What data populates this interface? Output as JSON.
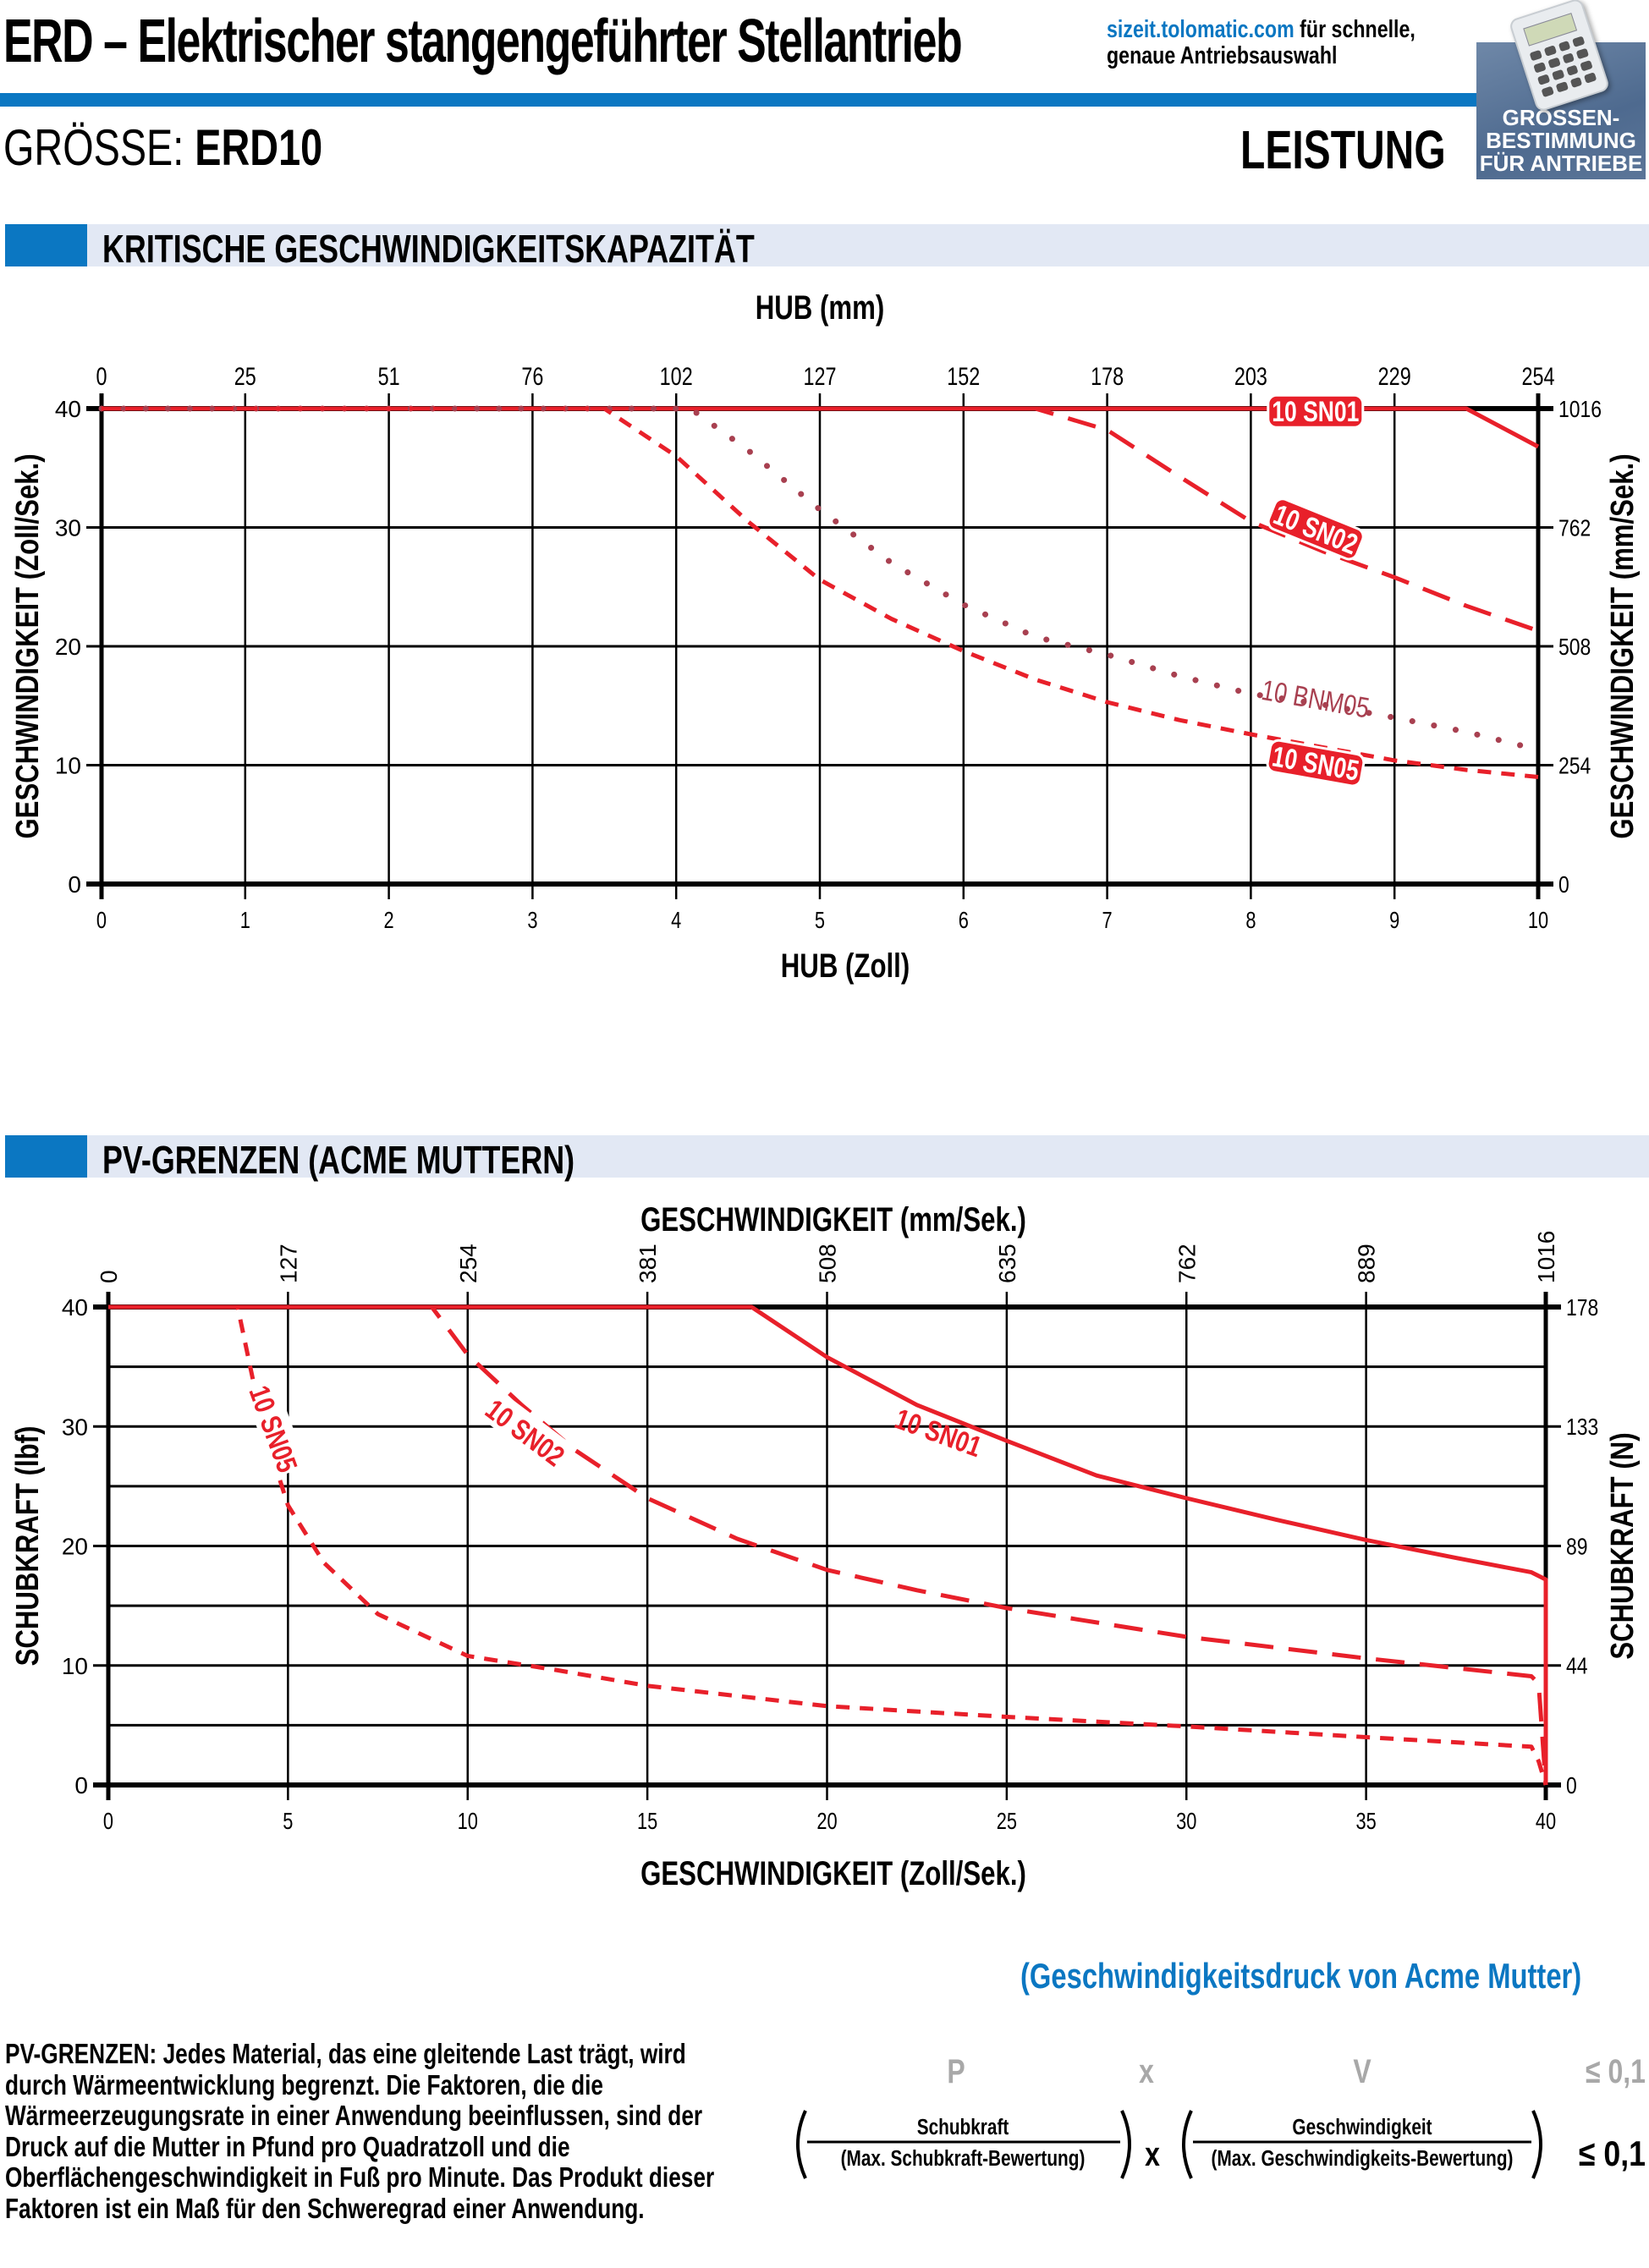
{
  "header": {
    "title": "ERD – Elektrischer stangengeführter Stellantrieb",
    "sizeit_link": "sizeit.tolomatic.com",
    "sizeit_text_1": " für schnelle,",
    "sizeit_text_2": "genaue Antriebsauswahl",
    "badge_lines": [
      "GRÖSSEN-",
      "BESTIMMUNG",
      "FÜR ANTRIEBE"
    ],
    "size_label": "GRÖSSE:",
    "size_value": "ERD10",
    "page_category": "LEISTUNG"
  },
  "colors": {
    "brand_blue": "#0b77c2",
    "section_bg": "#e2e8f4",
    "curve_red": "#e8202a",
    "curve_dotted": "#a84050",
    "formula_grey": "#a8a8a8"
  },
  "sections": {
    "critical_speed": "KRITISCHE GESCHWINDIGKEITSKAPAZITÄT",
    "pv_limits": "PV-GRENZEN (ACME MUTTERN)"
  },
  "chart_data": [
    {
      "type": "line",
      "title": "KRITISCHE GESCHWINDIGKEITSKAPAZITÄT",
      "xlabel": "HUB (Zoll)",
      "xlabel_top": "HUB (mm)",
      "ylabel": "GESCHWINDIGKEIT (Zoll/Sek.)",
      "ylabel_right": "GESCHWINDIGKEIT (mm/Sek.)",
      "xlim": [
        0,
        10
      ],
      "ylim": [
        0,
        40
      ],
      "x_ticks": [
        0,
        1,
        2,
        3,
        4,
        5,
        6,
        7,
        8,
        9,
        10
      ],
      "x_ticks_top": [
        "0",
        "25",
        "51",
        "76",
        "102",
        "127",
        "152",
        "178",
        "203",
        "229",
        "254"
      ],
      "y_ticks": [
        0,
        10,
        20,
        30,
        40
      ],
      "y_ticks_right": [
        "0",
        "254",
        "508",
        "762",
        "1016"
      ],
      "grid": true,
      "series": [
        {
          "name": "10 SN01",
          "style": "solid",
          "label_style": "badge",
          "x": [
            0,
            9.5,
            10
          ],
          "y": [
            40,
            40,
            36.8
          ]
        },
        {
          "name": "10 SN02",
          "style": "dashed-long",
          "label_style": "badge",
          "x": [
            0,
            6.5,
            7,
            7.5,
            8,
            8.5,
            9,
            9.5,
            10
          ],
          "y": [
            40,
            40,
            38.2,
            34.3,
            30.5,
            28,
            25.8,
            23.4,
            21.3
          ]
        },
        {
          "name": "10 BNM05",
          "style": "dotted",
          "label_style": "plain",
          "x": [
            0,
            4.1,
            4.5,
            5,
            5.5,
            6,
            6.5,
            7,
            7.5,
            8,
            8.5,
            9,
            9.5,
            10
          ],
          "y": [
            40,
            40,
            36.5,
            31.5,
            27,
            23.5,
            20.8,
            19.3,
            17.5,
            16,
            15.1,
            14,
            12.8,
            11.3
          ]
        },
        {
          "name": "10 SN05",
          "style": "dashed-short",
          "label_style": "badge",
          "x": [
            0,
            3.5,
            4,
            4.5,
            5,
            5.5,
            6,
            6.5,
            7,
            7.5,
            8,
            8.5,
            9,
            9.5,
            10
          ],
          "y": [
            40,
            40,
            36,
            30.5,
            25.6,
            22.3,
            19.6,
            17.2,
            15.3,
            13.8,
            12.6,
            11.5,
            10.4,
            9.6,
            9.0
          ]
        }
      ]
    },
    {
      "type": "line",
      "title": "PV-GRENZEN (ACME MUTTERN)",
      "xlabel": "GESCHWINDIGKEIT (Zoll/Sek.)",
      "xlabel_top": "GESCHWINDIGKEIT (mm/Sek.)",
      "ylabel": "SCHUBKRAFT (lbf)",
      "ylabel_right": "SCHUBKRAFT (N)",
      "xlim": [
        0,
        40
      ],
      "ylim": [
        0,
        40
      ],
      "x_ticks": [
        0,
        5,
        10,
        15,
        20,
        25,
        30,
        35,
        40
      ],
      "x_ticks_top": [
        "0",
        "127",
        "254",
        "381",
        "508",
        "635",
        "762",
        "889",
        "1016"
      ],
      "y_ticks": [
        0,
        10,
        20,
        30,
        40
      ],
      "y_ticks_right": [
        "0",
        "44",
        "89",
        "133",
        "178"
      ],
      "grid": true,
      "series": [
        {
          "name": "10 SN01",
          "style": "solid",
          "x": [
            0,
            17.9,
            20,
            22.5,
            25,
            27.5,
            30,
            32.5,
            35,
            37.5,
            39.6,
            40,
            40
          ],
          "y": [
            40,
            40,
            35.8,
            31.8,
            28.8,
            25.9,
            24,
            22.2,
            20.5,
            19,
            17.8,
            17.2,
            0
          ]
        },
        {
          "name": "10 SN02",
          "style": "dashed-long",
          "x": [
            0,
            9,
            10,
            11.5,
            13,
            15,
            17.5,
            20,
            22.5,
            25,
            30,
            35,
            39.6,
            39.8,
            40
          ],
          "y": [
            40,
            40,
            36,
            31.8,
            28,
            24,
            20.6,
            18,
            16.3,
            14.8,
            12.4,
            10.6,
            9.1,
            8.5,
            0
          ]
        },
        {
          "name": "10 SN05",
          "style": "dashed-short",
          "x": [
            0,
            3.6,
            4.3,
            5,
            6,
            7.5,
            10,
            12.5,
            15,
            20,
            25,
            30,
            35,
            39.6,
            39.8,
            40
          ],
          "y": [
            40,
            40,
            30,
            23.4,
            18.6,
            14.3,
            10.8,
            9.6,
            8.3,
            6.6,
            5.7,
            4.9,
            4.0,
            3.2,
            2,
            0
          ]
        }
      ]
    }
  ],
  "pv_formula": {
    "caption": "(Geschwindigkeitsdruck von Acme Mutter)",
    "symbol_p": "P",
    "symbol_x": "x",
    "symbol_v": "V",
    "symbol_le": "≤ 0,1",
    "numerator_1": "Schubkraft",
    "denominator_1": "(Max. Schubkraft-Bewertung)",
    "operator": "x",
    "numerator_2": "Geschwindigkeit",
    "denominator_2": "(Max. Geschwindigkeits-Bewertung)",
    "result": "≤ 0,1"
  },
  "pv_description": "PV-GRENZEN: Jedes Material, das eine gleitende Last trägt, wird durch Wärmeentwicklung begrenzt. Die Faktoren, die die Wärmeerzeugungsrate in einer Anwendung beeinflussen, sind der Druck auf die Mutter in Pfund pro Quadratzoll und die Oberflächengeschwindigkeit in Fuß pro Minute. Das Produkt dieser Faktoren ist ein Maß für den Schweregrad einer Anwendung."
}
